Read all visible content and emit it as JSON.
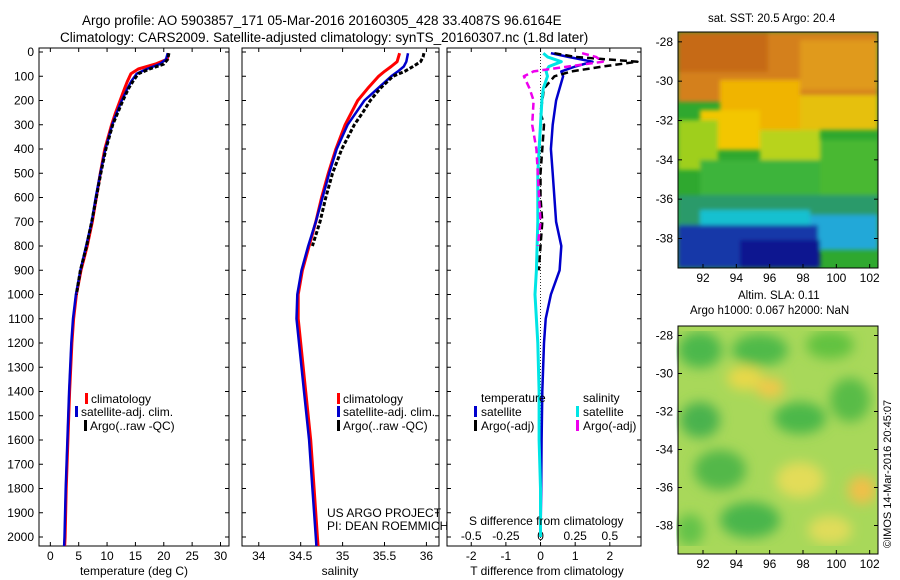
{
  "header": {
    "title_line1": "Argo profile: AO 5903857_171 05-Mar-2016 20160305_428 33.4087S 96.6164E",
    "title_line2": "Climatology: CARS2009. Satellite-adjusted climatology: synTS_20160307.nc (1.8d later)"
  },
  "side_text": {
    "sst_title": "sat. SST: 20.5 Argo: 20.4",
    "sla_title1": "Altim. SLA: 0.11",
    "sla_title2": "Argo h1000: 0.067 h2000: NaN",
    "imos_label": "©IMOS 14-Mar-2016 20:45:07"
  },
  "colors": {
    "climatology": "#ff0000",
    "satellite": "#0000cc",
    "argo": "#000000",
    "satellite_salinity": "#00e5e5",
    "argo_salinity": "#ee00ee"
  },
  "chart_data": [
    {
      "type": "line",
      "id": "temperature",
      "xlabel": "temperature (deg C)",
      "xlim": [
        -2,
        31.5
      ],
      "ylim": [
        2060,
        0
      ],
      "x_ticks": [
        0,
        5,
        10,
        15,
        20,
        25,
        30
      ],
      "y_ticks": [
        0,
        100,
        200,
        300,
        400,
        500,
        600,
        700,
        800,
        900,
        1000,
        1100,
        1200,
        1300,
        1400,
        1500,
        1600,
        1700,
        1800,
        1900,
        2000
      ],
      "legend": [
        "climatology",
        "satellite-adj. clim.",
        "Argo(..raw -QC)"
      ],
      "series": [
        {
          "name": "climatology",
          "depth": [
            5,
            30,
            50,
            70,
            90,
            120,
            150,
            200,
            250,
            300,
            400,
            500,
            600,
            700,
            800,
            900,
            1000,
            1100,
            1200,
            1400,
            1600,
            1800,
            2000,
            2050
          ],
          "values": [
            20.8,
            20.6,
            18.5,
            15.5,
            14.2,
            13.6,
            13.1,
            12.3,
            11.5,
            10.8,
            9.6,
            8.8,
            8.1,
            7.4,
            6.5,
            5.4,
            4.6,
            4.1,
            3.8,
            3.4,
            3.1,
            2.8,
            2.6,
            2.5
          ]
        },
        {
          "name": "satellite-adj. clim.",
          "depth": [
            5,
            30,
            50,
            70,
            90,
            120,
            150,
            200,
            250,
            300,
            400,
            500,
            600,
            700,
            800,
            900,
            1000,
            1100,
            1200,
            1400,
            1600,
            1800,
            2000,
            2050
          ],
          "values": [
            20.7,
            20.4,
            19.3,
            17.0,
            15.2,
            14.3,
            13.6,
            12.6,
            11.7,
            10.9,
            9.7,
            8.8,
            8.0,
            7.3,
            6.3,
            5.3,
            4.5,
            4.0,
            3.7,
            3.3,
            3.0,
            2.7,
            2.5,
            2.4
          ]
        },
        {
          "name": "Argo(..raw -QC)",
          "depth": [
            5,
            30,
            50,
            70,
            90,
            120,
            150,
            200,
            250,
            300,
            400,
            500,
            600,
            700,
            800,
            900,
            1000
          ],
          "values": [
            20.9,
            20.7,
            20.0,
            17.5,
            15.5,
            14.6,
            13.8,
            12.8,
            11.9,
            11.0,
            9.8,
            8.9,
            8.1,
            7.3,
            6.4,
            5.3,
            4.6
          ]
        }
      ]
    },
    {
      "type": "line",
      "id": "salinity",
      "xlabel": "salinity",
      "xlim": [
        33.8,
        36.15
      ],
      "ylim": [
        2060,
        0
      ],
      "x_ticks": [
        34,
        34.5,
        35,
        35.5,
        36
      ],
      "legend": [
        "climatology",
        "satellite-adj. clim.",
        "Argo(..raw -QC)"
      ],
      "series": [
        {
          "name": "climatology",
          "depth": [
            5,
            40,
            60,
            80,
            100,
            150,
            200,
            300,
            400,
            500,
            600,
            700,
            800,
            900,
            1000,
            1100,
            1200,
            1400,
            1600,
            1800,
            2000,
            2050
          ],
          "values": [
            35.68,
            35.65,
            35.58,
            35.5,
            35.43,
            35.3,
            35.18,
            35.03,
            34.92,
            34.83,
            34.75,
            34.68,
            34.6,
            34.52,
            34.47,
            34.47,
            34.5,
            34.56,
            34.62,
            34.66,
            34.7,
            34.71
          ]
        },
        {
          "name": "satellite-adj. clim.",
          "depth": [
            5,
            40,
            60,
            80,
            100,
            150,
            200,
            300,
            400,
            500,
            600,
            700,
            800,
            900,
            1000,
            1100,
            1200,
            1400,
            1600,
            1800,
            2000,
            2050
          ],
          "values": [
            35.78,
            35.76,
            35.73,
            35.66,
            35.58,
            35.42,
            35.26,
            35.06,
            34.93,
            34.84,
            34.76,
            34.68,
            34.59,
            34.51,
            34.46,
            34.45,
            34.48,
            34.54,
            34.6,
            34.64,
            34.68,
            34.69
          ]
        },
        {
          "name": "Argo(..raw -QC)",
          "depth": [
            5,
            20,
            40,
            60,
            80,
            100,
            150,
            200,
            250,
            300,
            400,
            500,
            600,
            700,
            800
          ],
          "values": [
            35.97,
            35.96,
            35.93,
            35.84,
            35.74,
            35.6,
            35.45,
            35.33,
            35.24,
            35.14,
            34.99,
            34.88,
            34.8,
            34.73,
            34.64
          ]
        }
      ]
    },
    {
      "type": "line",
      "id": "difference",
      "xlabel": "T difference from climatology",
      "top_label": "S difference from climatology",
      "xlim": [
        -2.7,
        2.9
      ],
      "ylim": [
        2060,
        0
      ],
      "x_ticks": [
        -2,
        -1,
        0,
        1,
        2
      ],
      "top_ticks": [
        -0.5,
        -0.25,
        0,
        0.25,
        0.5
      ],
      "legend_headers": [
        "temperature",
        "salinity"
      ],
      "legend": [
        "satellite",
        "Argo(-adj)",
        "satellite",
        "Argo(-adj)"
      ],
      "series": [
        {
          "name": "temperature satellite",
          "depth": [
            5,
            20,
            40,
            60,
            80,
            100,
            150,
            200,
            300,
            400,
            500,
            600,
            700,
            800,
            900,
            1000,
            1100,
            1200,
            1400,
            1600,
            1800,
            2000
          ],
          "values": [
            0.3,
            0.8,
            1.5,
            1.0,
            0.6,
            0.65,
            0.55,
            0.45,
            0.35,
            0.3,
            0.35,
            0.4,
            0.45,
            0.6,
            0.55,
            0.3,
            0.15,
            0.1,
            0.05,
            0.03,
            0.02,
            0.0
          ]
        },
        {
          "name": "temperature Argo(-adj)",
          "depth": [
            5,
            20,
            40,
            60,
            80,
            100,
            150,
            200,
            250,
            300,
            400,
            500,
            600,
            700,
            800,
            900
          ],
          "values": [
            0.4,
            1.0,
            2.8,
            1.8,
            0.9,
            0.4,
            0.1,
            0.05,
            0.0,
            0.1,
            0.05,
            0.0,
            0.0,
            0.05,
            0.0,
            -0.05
          ]
        },
        {
          "name": "salinity satellite",
          "depth": [
            5,
            20,
            40,
            60,
            80,
            100,
            150,
            200,
            300,
            400,
            500,
            700,
            900,
            1000,
            1100,
            1200,
            1400,
            1600,
            1800,
            2000
          ],
          "values": [
            0.02,
            0.05,
            0.15,
            0.06,
            0.04,
            0.05,
            0.02,
            0.01,
            0.0,
            -0.01,
            -0.02,
            -0.02,
            -0.03,
            -0.04,
            -0.03,
            -0.02,
            -0.01,
            -0.01,
            0.0,
            0.0
          ]
        },
        {
          "name": "salinity Argo(-adj)",
          "depth": [
            5,
            20,
            40,
            60,
            80,
            100,
            150,
            200,
            300,
            400,
            500,
            600,
            700,
            800
          ],
          "values": [
            0.3,
            0.4,
            0.45,
            0.2,
            -0.05,
            -0.12,
            -0.08,
            -0.05,
            -0.06,
            -0.03,
            -0.02,
            -0.01,
            0.0,
            -0.02
          ]
        }
      ]
    },
    {
      "type": "heatmap",
      "id": "sst_map",
      "title": "sat. SST: 20.5 Argo: 20.4",
      "xlim": [
        90.5,
        102.5
      ],
      "ylim": [
        -39.5,
        -27.5
      ],
      "x_ticks": [
        92,
        94,
        96,
        98,
        100,
        102
      ],
      "y_ticks": [
        -28,
        -30,
        -32,
        -34,
        -36,
        -38
      ]
    },
    {
      "type": "heatmap",
      "id": "sla_map",
      "title": "Altim. SLA: 0.11",
      "xlim": [
        90.5,
        102.5
      ],
      "ylim": [
        -39.5,
        -27.5
      ],
      "x_ticks": [
        92,
        94,
        96,
        98,
        100,
        102
      ],
      "y_ticks": [
        -28,
        -30,
        -32,
        -34,
        -36,
        -38
      ]
    }
  ],
  "annotation": {
    "line1": "US ARGO PROJECT",
    "line2": "PI: DEAN ROEMMICH"
  }
}
